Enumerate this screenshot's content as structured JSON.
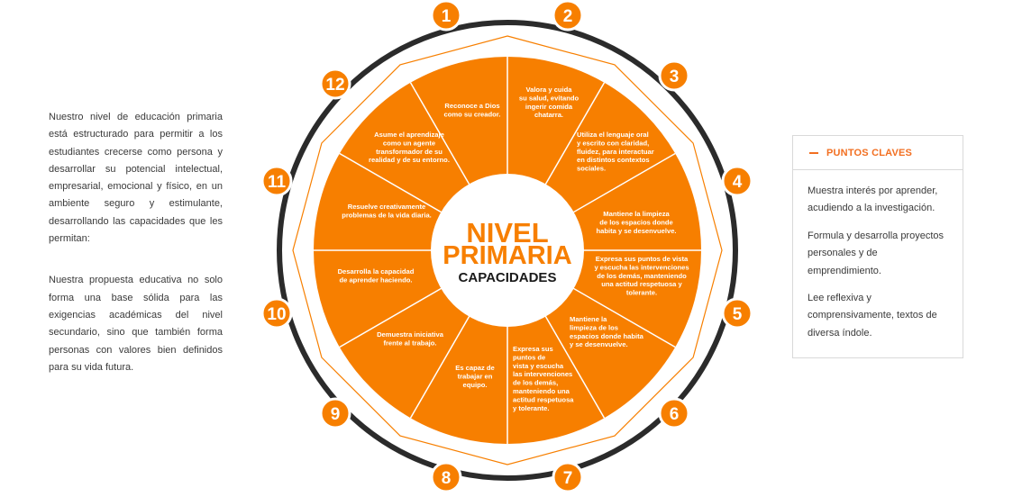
{
  "intro": {
    "p1": "Nuestro nivel de educación primaria está estructurado para permitir a los estudiantes crecerse como persona y desarrollar su potencial intelectual, empresarial, emocional y físico, en un ambiente seguro y estimulante, desarrollando las capacidades que les permitan:",
    "p2": "Nuestra propuesta educativa no solo forma una base sólida para las exigencias académicas del nivel secundario, sino que también forma personas con valores bien definidos para su vida futura."
  },
  "wheel": {
    "title_line1": "NIVEL",
    "title_line2": "PRIMARIA",
    "subtitle": "CAPACIDADES",
    "colors": {
      "orange": "#f77f00",
      "ring": "#2b2b2b",
      "badge": "#f77f00"
    },
    "segments": [
      {
        "number": "1",
        "text": [
          "Reconoce a Dios",
          "como su creador."
        ]
      },
      {
        "number": "2",
        "text": [
          "Valora y cuida",
          "su salud, evitando",
          "ingerir comida",
          "chatarra."
        ]
      },
      {
        "number": "3",
        "text": [
          "Utiliza el lenguaje oral",
          "y escrito con claridad,",
          "fluidez, para interactuar",
          "en distintos contextos",
          "sociales."
        ]
      },
      {
        "number": "4",
        "text": [
          "Mantiene la limpieza",
          "de los espacios donde",
          "habita y se desenvuelve."
        ]
      },
      {
        "number": "5",
        "text": [
          "Expresa sus puntos de vista",
          "y escucha las intervenciones",
          "de los demás, manteniendo",
          "una actitud respetuosa y",
          "tolerante."
        ]
      },
      {
        "number": "6",
        "text": [
          "Mantiene la",
          "limpieza de los",
          "espacios donde habita",
          "y se desenvuelve."
        ]
      },
      {
        "number": "7",
        "text": [
          "Expresa sus",
          "puntos de",
          "vista y escucha",
          "las intervenciones",
          "de los demás,",
          "manteniendo una",
          "actitud respetuosa",
          "y tolerante."
        ]
      },
      {
        "number": "8",
        "text": [
          "Es capaz de",
          "trabajar en",
          "equipo."
        ]
      },
      {
        "number": "9",
        "text": [
          "Demuestra iniciativa",
          "frente al trabajo."
        ]
      },
      {
        "number": "10",
        "text": [
          "Desarrolla la capacidad",
          "de aprender haciendo."
        ]
      },
      {
        "number": "11",
        "text": [
          "Resuelve creativamente",
          "problemas de la vida diaria."
        ]
      },
      {
        "number": "12",
        "text": [
          "Asume el aprendizaje",
          "como un agente",
          "transformador de su",
          "realidad y de su entorno."
        ]
      }
    ]
  },
  "panel": {
    "title": "PUNTOS CLAVES",
    "items": [
      "Muestra interés por aprender, acudiendo a la investigación.",
      "Formula y desarrolla proyectos personales y de emprendimiento.",
      "Lee reflexiva y comprensivamente, textos de diversa índole."
    ]
  }
}
